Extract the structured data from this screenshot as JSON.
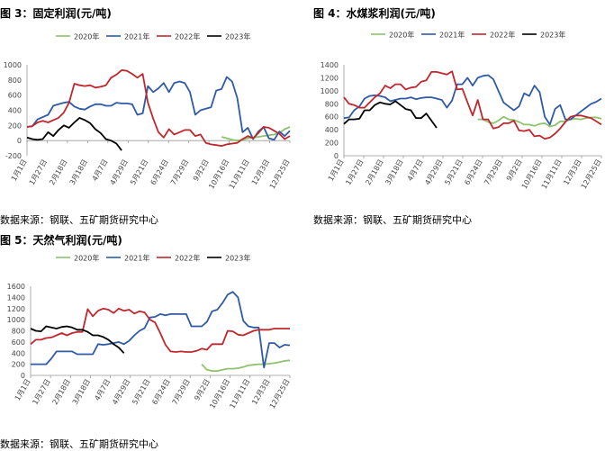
{
  "page": {
    "source_label": "数据来源：钢联、五矿期货研究中心"
  },
  "colors": {
    "2020年": "#8dc26e",
    "2021年": "#2e5aa6",
    "2022年": "#c0272d",
    "2023年": "#000000",
    "axis": "#999999",
    "tick_text": "#444444"
  },
  "chart_data": [
    {
      "id": "fig3",
      "type": "line",
      "title": "图 3：固定利润(元/吨)",
      "xlabel": "",
      "ylabel": "",
      "ylim": [
        -200,
        1000
      ],
      "yticks": [
        -200,
        0,
        200,
        400,
        600,
        800,
        1000
      ],
      "ytick_labels": [
        "-200",
        "0",
        "200",
        "400",
        "600",
        "800",
        "1000"
      ],
      "x_tick_labels": [
        "1月1日",
        "1月27日",
        "2月18日",
        "3月18日",
        "4月7日",
        "4月29日",
        "5月21日",
        "6月24日",
        "7月29日",
        "9月2日",
        "10月16日",
        "11月11日",
        "12月3日",
        "12月25日"
      ],
      "x_count": 51,
      "legend": "top",
      "series": [
        {
          "name": "2020年",
          "x": [
            37,
            38,
            39,
            40,
            41,
            42,
            43,
            44,
            45,
            46,
            47,
            48,
            49,
            50
          ],
          "values": [
            50,
            30,
            10,
            0,
            10,
            30,
            40,
            50,
            60,
            70,
            80,
            100,
            150,
            180
          ]
        },
        {
          "name": "2021年",
          "x": [
            0,
            1,
            2,
            3,
            4,
            5,
            6,
            7,
            8,
            9,
            10,
            11,
            12,
            13,
            14,
            15,
            16,
            17,
            18,
            19,
            20,
            21,
            22,
            23,
            24,
            25,
            26,
            27,
            28,
            29,
            30,
            31,
            32,
            33,
            34,
            35,
            36,
            37,
            38,
            39,
            40,
            41,
            42,
            43,
            44,
            45,
            46,
            47,
            48,
            49,
            50
          ],
          "values": [
            180,
            190,
            280,
            310,
            340,
            460,
            480,
            500,
            510,
            450,
            420,
            410,
            450,
            480,
            480,
            460,
            460,
            500,
            490,
            490,
            480,
            340,
            360,
            720,
            640,
            690,
            760,
            640,
            760,
            780,
            760,
            640,
            340,
            400,
            420,
            440,
            660,
            680,
            840,
            780,
            560,
            110,
            170,
            20,
            120,
            180,
            30,
            10,
            120,
            60,
            130
          ]
        },
        {
          "name": "2022年",
          "x": [
            0,
            1,
            2,
            3,
            4,
            5,
            6,
            7,
            8,
            9,
            10,
            11,
            12,
            13,
            14,
            15,
            16,
            17,
            18,
            19,
            20,
            21,
            22,
            23,
            24,
            25,
            26,
            27,
            28,
            29,
            30,
            31,
            32,
            33,
            34,
            35,
            36,
            37,
            38,
            39,
            40,
            41,
            42,
            43,
            44,
            45,
            46,
            47,
            48,
            49,
            50
          ],
          "values": [
            180,
            190,
            240,
            260,
            240,
            270,
            300,
            370,
            500,
            750,
            730,
            720,
            730,
            700,
            710,
            730,
            830,
            870,
            930,
            920,
            880,
            830,
            880,
            500,
            290,
            110,
            40,
            150,
            80,
            110,
            140,
            140,
            60,
            80,
            -30,
            -50,
            -60,
            -70,
            -50,
            -40,
            -30,
            20,
            60,
            30,
            100,
            180,
            170,
            130,
            90,
            20,
            60
          ]
        },
        {
          "name": "2023年",
          "x": [
            0,
            1,
            2,
            3,
            4,
            5,
            6,
            7,
            8,
            9,
            10,
            11,
            12,
            13,
            14,
            15,
            16,
            17,
            18
          ],
          "values": [
            40,
            20,
            10,
            20,
            110,
            60,
            140,
            200,
            170,
            240,
            300,
            270,
            230,
            150,
            100,
            20,
            0,
            -40,
            -130
          ]
        }
      ]
    },
    {
      "id": "fig4",
      "type": "line",
      "title": "图 4：水煤浆利润(元/吨)",
      "xlabel": "",
      "ylabel": "",
      "ylim": [
        0,
        1400
      ],
      "yticks": [
        0,
        200,
        400,
        600,
        800,
        1000,
        1200,
        1400
      ],
      "ytick_labels": [
        "0",
        "200",
        "400",
        "600",
        "800",
        "1000",
        "1200",
        "1400"
      ],
      "x_tick_labels": [
        "1月1日",
        "1月27日",
        "2月18日",
        "3月18日",
        "4月7日",
        "4月29日",
        "5月21日",
        "6月24日",
        "7月29日",
        "9月2日",
        "10月16日",
        "11月11日",
        "12月3日",
        "12月25日"
      ],
      "x_count": 51,
      "legend": "top",
      "series": [
        {
          "name": "2020年",
          "x": [
            26,
            27,
            28,
            29,
            30,
            31,
            32,
            33,
            34,
            35,
            36,
            37,
            38,
            39,
            40,
            41,
            42,
            43,
            44,
            45,
            46,
            47,
            48,
            49,
            50
          ],
          "values": [
            560,
            560,
            520,
            500,
            540,
            600,
            560,
            550,
            520,
            480,
            480,
            460,
            490,
            500,
            450,
            470,
            530,
            530,
            560,
            570,
            560,
            580,
            590,
            590,
            570
          ]
        },
        {
          "name": "2021年",
          "x": [
            0,
            1,
            2,
            3,
            4,
            5,
            6,
            7,
            8,
            9,
            10,
            11,
            12,
            13,
            14,
            15,
            16,
            17,
            18,
            19,
            20,
            21,
            22,
            23,
            24,
            25,
            26,
            27,
            28,
            29,
            30,
            31,
            32,
            33,
            34,
            35,
            36,
            37,
            38,
            39,
            40,
            41,
            42,
            43,
            44,
            45,
            46,
            47,
            48,
            49,
            50
          ],
          "values": [
            580,
            590,
            700,
            760,
            880,
            920,
            930,
            920,
            900,
            840,
            860,
            880,
            880,
            900,
            870,
            890,
            900,
            900,
            880,
            860,
            740,
            850,
            1100,
            1100,
            1200,
            1080,
            1200,
            1230,
            1240,
            1180,
            1000,
            820,
            760,
            700,
            760,
            960,
            920,
            1080,
            980,
            600,
            480,
            720,
            780,
            560,
            560,
            620,
            680,
            740,
            800,
            830,
            880
          ]
        },
        {
          "name": "2022年",
          "x": [
            0,
            1,
            2,
            3,
            4,
            5,
            6,
            7,
            8,
            9,
            10,
            11,
            12,
            13,
            14,
            15,
            16,
            17,
            18,
            19,
            20,
            21,
            22,
            23,
            24,
            25,
            26,
            27,
            28,
            29,
            30,
            31,
            32,
            33,
            34,
            35,
            36,
            37,
            38,
            39,
            40,
            41,
            42,
            43,
            44,
            45,
            46,
            47,
            48,
            49,
            50
          ],
          "values": [
            900,
            800,
            780,
            740,
            740,
            820,
            900,
            960,
            1080,
            1040,
            1100,
            1100,
            1020,
            1050,
            1060,
            1140,
            1160,
            1290,
            1290,
            1270,
            1250,
            1300,
            1020,
            1030,
            820,
            620,
            860,
            560,
            560,
            420,
            440,
            500,
            500,
            540,
            390,
            380,
            400,
            300,
            310,
            260,
            280,
            340,
            420,
            520,
            600,
            620,
            620,
            600,
            580,
            530,
            480
          ]
        },
        {
          "name": "2023年",
          "x": [
            0,
            1,
            2,
            3,
            4,
            5,
            6,
            7,
            8,
            9,
            10,
            11,
            12,
            13,
            14,
            15,
            16,
            17,
            18
          ],
          "values": [
            490,
            560,
            560,
            570,
            700,
            700,
            780,
            820,
            800,
            790,
            840,
            780,
            720,
            700,
            580,
            580,
            650,
            540,
            430
          ]
        }
      ]
    },
    {
      "id": "fig5",
      "type": "line",
      "title": "图 5：天然气利润(元/吨)",
      "xlabel": "",
      "ylabel": "",
      "ylim": [
        0,
        1600
      ],
      "yticks": [
        0,
        200,
        400,
        600,
        800,
        1000,
        1200,
        1400,
        1600
      ],
      "ytick_labels": [
        "0",
        "200",
        "400",
        "600",
        "800",
        "1000",
        "1200",
        "1400",
        "1600"
      ],
      "x_tick_labels": [
        "1月1日",
        "1月27日",
        "2月18日",
        "3月18日",
        "4月7日",
        "4月29日",
        "5月21日",
        "6月24日",
        "7月29日",
        "9月2日",
        "10月16日",
        "11月11日",
        "12月3日",
        "12月25日"
      ],
      "x_count": 51,
      "legend": "top",
      "series": [
        {
          "name": "2020年",
          "x": [
            33,
            34,
            35,
            36,
            37,
            38,
            39,
            40,
            41,
            42,
            43,
            44,
            45,
            46,
            47,
            48,
            49,
            50
          ],
          "values": [
            200,
            100,
            80,
            80,
            100,
            120,
            120,
            130,
            150,
            180,
            190,
            200,
            200,
            210,
            220,
            240,
            260,
            270
          ]
        },
        {
          "name": "2021年",
          "x": [
            0,
            1,
            2,
            3,
            4,
            5,
            6,
            7,
            8,
            9,
            10,
            11,
            12,
            13,
            14,
            15,
            16,
            17,
            18,
            19,
            20,
            21,
            22,
            23,
            24,
            25,
            26,
            27,
            28,
            29,
            30,
            31,
            32,
            33,
            34,
            35,
            36,
            37,
            38,
            39,
            40,
            41,
            42,
            43,
            44,
            45,
            46,
            47,
            48,
            49,
            50
          ],
          "values": [
            200,
            200,
            200,
            200,
            300,
            430,
            430,
            430,
            430,
            380,
            380,
            380,
            380,
            560,
            550,
            560,
            580,
            600,
            560,
            620,
            720,
            800,
            850,
            1040,
            1050,
            1100,
            1080,
            1100,
            1100,
            1100,
            1100,
            880,
            880,
            880,
            960,
            1150,
            1180,
            1300,
            1450,
            1500,
            1400,
            980,
            880,
            860,
            860,
            140,
            580,
            580,
            500,
            550,
            540
          ]
        },
        {
          "name": "2022年",
          "x": [
            0,
            1,
            2,
            3,
            4,
            5,
            6,
            7,
            8,
            9,
            10,
            11,
            12,
            13,
            14,
            15,
            16,
            17,
            18,
            19,
            20,
            21,
            22,
            23,
            24,
            25,
            26,
            27,
            28,
            29,
            30,
            31,
            32,
            33,
            34,
            35,
            36,
            37,
            38,
            39,
            40,
            41,
            42,
            43,
            44,
            45,
            46,
            47,
            48,
            49,
            50
          ],
          "values": [
            560,
            640,
            640,
            670,
            680,
            720,
            760,
            720,
            760,
            780,
            780,
            1190,
            1060,
            1160,
            1200,
            1180,
            1120,
            1200,
            1160,
            1180,
            1110,
            1150,
            1130,
            1000,
            950,
            760,
            550,
            430,
            420,
            430,
            420,
            420,
            440,
            480,
            460,
            560,
            560,
            560,
            800,
            790,
            730,
            720,
            760,
            800,
            820,
            820,
            820,
            840,
            840,
            840,
            840
          ]
        },
        {
          "name": "2023年",
          "x": [
            0,
            1,
            2,
            3,
            4,
            5,
            6,
            7,
            8,
            9,
            10,
            11,
            12,
            13,
            14,
            15,
            16,
            17,
            18
          ],
          "values": [
            840,
            800,
            790,
            880,
            860,
            840,
            870,
            880,
            860,
            820,
            820,
            780,
            720,
            720,
            690,
            640,
            560,
            500,
            400
          ]
        }
      ]
    }
  ]
}
